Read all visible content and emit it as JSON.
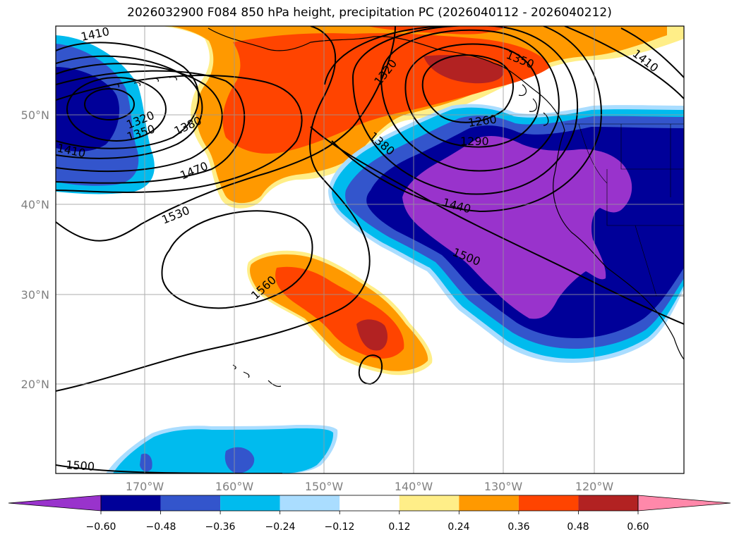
{
  "title": "2026032900 F084 850 hPa height, precipitation PC (2026040112 - 2026040212)",
  "map": {
    "lat_labels": [
      "50°N",
      "40°N",
      "30°N",
      "20°N"
    ],
    "lon_labels": [
      "170°W",
      "160°W",
      "150°W",
      "140°W",
      "130°W",
      "120°W"
    ],
    "contour_labels": [
      "1410",
      "1320",
      "1350",
      "1380",
      "1410",
      "1470",
      "1530",
      "1560",
      "1500",
      "1320",
      "1380",
      "1350",
      "1410",
      "1260",
      "1290",
      "1440",
      "1500"
    ]
  },
  "colorbar": {
    "ticks": [
      "−0.60",
      "−0.48",
      "−0.36",
      "−0.24",
      "−0.12",
      "0.12",
      "0.24",
      "0.36",
      "0.48",
      "0.60"
    ],
    "colors": [
      "#9933cc",
      "#000099",
      "#3355cc",
      "#00bbee",
      "#aaddff",
      "#ffffff",
      "#ffee88",
      "#ff9900",
      "#ff4400",
      "#b22222",
      "#ff88aa"
    ]
  }
}
